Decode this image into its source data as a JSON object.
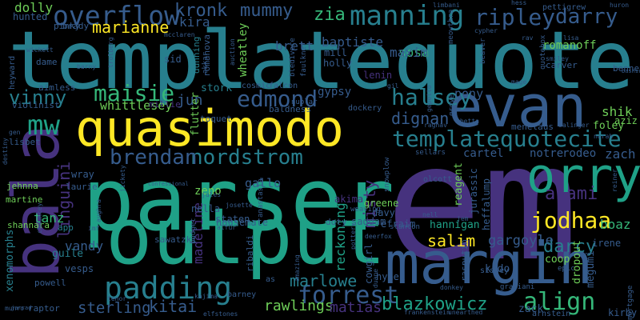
{
  "background": "#000000",
  "palette": {
    "p": "#3b0f70",
    "i": "#46327e",
    "b": "#365c8d",
    "t": "#277f8e",
    "c": "#1fa187",
    "g": "#35b779",
    "l": "#6ece58",
    "y": "#fde725"
  },
  "words": [
    {
      "text": "templatequote",
      "color": "t"
    },
    {
      "text": "em",
      "color": "i"
    },
    {
      "text": "parser",
      "color": "c"
    },
    {
      "text": "output",
      "color": "c"
    },
    {
      "text": "quasimodo",
      "color": "y"
    },
    {
      "text": "margin",
      "color": "b"
    },
    {
      "text": "evan",
      "color": "b"
    },
    {
      "text": "bala",
      "color": "i"
    },
    {
      "text": "orry",
      "color": "c"
    },
    {
      "text": "manning",
      "color": "t"
    },
    {
      "text": "overflow",
      "color": "b"
    },
    {
      "text": "templatequotecite",
      "color": "t"
    },
    {
      "text": "mw",
      "color": "c"
    },
    {
      "text": "nordstrom",
      "color": "t"
    },
    {
      "text": "padding",
      "color": "t"
    },
    {
      "text": "forrest",
      "color": "b"
    },
    {
      "text": "jodhaa",
      "color": "y"
    },
    {
      "text": "blazkowicz",
      "color": "c"
    },
    {
      "text": "align",
      "color": "g"
    },
    {
      "text": "edmond",
      "color": "b"
    },
    {
      "text": "halsey",
      "color": "t"
    },
    {
      "text": "ripley",
      "color": "b"
    },
    {
      "text": "darry",
      "color": "b"
    },
    {
      "text": "brendan",
      "color": "b"
    },
    {
      "text": "maisie",
      "color": "g"
    },
    {
      "text": "vinny",
      "color": "t"
    },
    {
      "text": "asami",
      "color": "i"
    },
    {
      "text": "darcy",
      "color": "t"
    },
    {
      "text": "kronk",
      "color": "b"
    },
    {
      "text": "mummy",
      "color": "b"
    },
    {
      "text": "zia",
      "color": "g"
    },
    {
      "text": "marianne",
      "color": "y"
    },
    {
      "text": "misty",
      "color": "i"
    },
    {
      "text": "dignan",
      "color": "b"
    },
    {
      "text": "marlowe",
      "color": "t"
    },
    {
      "text": "rawlings",
      "color": "l"
    },
    {
      "text": "matias",
      "color": "i"
    },
    {
      "text": "kitai",
      "color": "b"
    },
    {
      "text": "sterling",
      "color": "b"
    },
    {
      "text": "salim",
      "color": "y"
    },
    {
      "text": "gargoyle",
      "color": "b"
    },
    {
      "text": "linguini",
      "color": "i"
    },
    {
      "text": "reckoning",
      "color": "c"
    },
    {
      "text": "madeline",
      "color": "i"
    },
    {
      "text": "hannigan",
      "color": "c"
    },
    {
      "text": "jun",
      "color": "b"
    },
    {
      "text": "tanz",
      "color": "g"
    },
    {
      "text": "vandy",
      "color": "b"
    },
    {
      "text": "shik",
      "color": "l"
    },
    {
      "text": "zach",
      "color": "b"
    },
    {
      "text": "sosa",
      "color": "g"
    },
    {
      "text": "maxim",
      "color": "b"
    },
    {
      "text": "brett",
      "color": "b"
    },
    {
      "text": "baptiste",
      "color": "b"
    },
    {
      "text": "kira",
      "color": "b"
    },
    {
      "text": "romanoff",
      "color": "l"
    },
    {
      "text": "boaz",
      "color": "g"
    },
    {
      "text": "gallo",
      "color": "b"
    },
    {
      "text": "gypsy",
      "color": "b"
    },
    {
      "text": "pony",
      "color": "b"
    },
    {
      "text": "cartel",
      "color": "b"
    },
    {
      "text": "rodeo",
      "color": "b"
    },
    {
      "text": "notre",
      "color": "b"
    },
    {
      "text": "irene",
      "color": "b"
    },
    {
      "text": "dolly",
      "color": "l"
    },
    {
      "text": "hunted",
      "color": "b"
    },
    {
      "text": "pinky",
      "color": "b"
    },
    {
      "text": "wheatley",
      "color": "l"
    },
    {
      "text": "whittlesey",
      "color": "l"
    },
    {
      "text": "millie",
      "color": "i"
    },
    {
      "text": "sid",
      "color": "b"
    },
    {
      "text": "lenin",
      "color": "i"
    },
    {
      "text": "holly",
      "color": "b"
    },
    {
      "text": "mill",
      "color": "b"
    },
    {
      "text": "dunning",
      "color": "t"
    },
    {
      "text": "romanova",
      "color": "b"
    },
    {
      "text": "stork",
      "color": "t"
    },
    {
      "text": "zeno",
      "color": "l"
    },
    {
      "text": "nella",
      "color": "b"
    },
    {
      "text": "staten",
      "color": "b"
    },
    {
      "text": "housemate",
      "color": "b"
    },
    {
      "text": "saddam",
      "color": "b"
    },
    {
      "text": "doty",
      "color": "b"
    },
    {
      "text": "greene",
      "color": "l"
    },
    {
      "text": "davy",
      "color": "b"
    },
    {
      "text": "efraim",
      "color": "b"
    },
    {
      "text": "akima",
      "color": "i"
    },
    {
      "text": "reagent",
      "color": "l"
    },
    {
      "text": "jurassic",
      "color": "b"
    },
    {
      "text": "heffalump",
      "color": "b"
    },
    {
      "text": "coop",
      "color": "l"
    },
    {
      "text": "kido",
      "color": "b"
    },
    {
      "text": "dropout",
      "color": "l"
    },
    {
      "text": "megumi",
      "color": "b"
    },
    {
      "text": "hynek",
      "color": "b"
    },
    {
      "text": "cowgirl",
      "color": "b"
    },
    {
      "text": "zack",
      "color": "b"
    },
    {
      "text": "arnstein",
      "color": "b"
    },
    {
      "text": "kirby",
      "color": "b"
    },
    {
      "text": "menelaus",
      "color": "b"
    },
    {
      "text": "foley",
      "color": "l"
    },
    {
      "text": "aziz",
      "color": "l"
    },
    {
      "text": "bennet",
      "color": "b"
    },
    {
      "text": "pettigrew",
      "color": "b"
    },
    {
      "text": "brady",
      "color": "b"
    },
    {
      "text": "dame",
      "color": "b"
    },
    {
      "text": "aimless",
      "color": "b"
    },
    {
      "text": "violinist",
      "color": "b"
    },
    {
      "text": "lisbet",
      "color": "b"
    },
    {
      "text": "wray",
      "color": "b"
    },
    {
      "text": "laurie",
      "color": "b"
    },
    {
      "text": "jehnna",
      "color": "l"
    },
    {
      "text": "martine",
      "color": "l"
    },
    {
      "text": "shannara",
      "color": "l"
    },
    {
      "text": "xenomorphs",
      "color": "t"
    },
    {
      "text": "guile",
      "color": "t"
    },
    {
      "text": "vesps",
      "color": "b"
    },
    {
      "text": "powell",
      "color": "b"
    },
    {
      "text": "raptor",
      "color": "b"
    },
    {
      "text": "app",
      "color": "t"
    },
    {
      "text": "heyward",
      "color": "b"
    },
    {
      "text": "falcon",
      "color": "b"
    },
    {
      "text": "cosmic",
      "color": "b"
    },
    {
      "text": "nublar",
      "color": "b"
    },
    {
      "text": "baldness",
      "color": "b"
    },
    {
      "text": "dockery",
      "color": "b"
    },
    {
      "text": "toquet",
      "color": "b"
    },
    {
      "text": "flutter",
      "color": "l"
    },
    {
      "text": "olcott",
      "color": "b"
    },
    {
      "text": "weaving",
      "color": "b"
    },
    {
      "text": "snowplow",
      "color": "b"
    },
    {
      "text": "stanton",
      "color": "b"
    },
    {
      "text": "rasputin",
      "color": "b"
    },
    {
      "text": "sissey",
      "color": "b"
    },
    {
      "text": "graziani",
      "color": "b"
    },
    {
      "text": "epic",
      "color": "b"
    },
    {
      "text": "barney",
      "color": "b"
    },
    {
      "text": "ribaldi",
      "color": "b"
    },
    {
      "text": "as",
      "color": "b"
    },
    {
      "text": "kajima",
      "color": "b"
    },
    {
      "text": "tenor",
      "color": "b"
    },
    {
      "text": "munro",
      "color": "b"
    },
    {
      "text": "elfstones",
      "color": "b"
    },
    {
      "text": "frankenstein",
      "color": "b"
    },
    {
      "text": "unearthed",
      "color": "b"
    },
    {
      "text": "donkey",
      "color": "b"
    },
    {
      "text": "duane",
      "color": "b"
    },
    {
      "text": "amazing",
      "color": "b"
    },
    {
      "text": "pottery",
      "color": "b"
    },
    {
      "text": "budget",
      "color": "b"
    },
    {
      "text": "anastasia",
      "color": "b"
    },
    {
      "text": "alfur",
      "color": "b"
    },
    {
      "text": "aughra",
      "color": "b"
    },
    {
      "text": "sawatzki",
      "color": "b"
    },
    {
      "text": "mortgage",
      "color": "b"
    },
    {
      "text": "sellars",
      "color": "b"
    },
    {
      "text": "raghav",
      "color": "b"
    },
    {
      "text": "salinger",
      "color": "b"
    },
    {
      "text": "mage",
      "color": "b"
    },
    {
      "text": "smiley",
      "color": "b"
    },
    {
      "text": "quotebox",
      "color": "b"
    },
    {
      "text": "carver",
      "color": "b"
    },
    {
      "text": "beaver",
      "color": "b"
    },
    {
      "text": "huron",
      "color": "b"
    },
    {
      "text": "hess",
      "color": "b"
    },
    {
      "text": "meowthra",
      "color": "b"
    },
    {
      "text": "cypher",
      "color": "b"
    },
    {
      "text": "wickett",
      "color": "b"
    },
    {
      "text": "barny",
      "color": "b"
    },
    {
      "text": "trolberg",
      "color": "b"
    },
    {
      "text": "bledivere",
      "color": "b"
    },
    {
      "text": "faulkner",
      "color": "b"
    },
    {
      "text": "auction",
      "color": "b"
    },
    {
      "text": "mcclaren",
      "color": "b"
    },
    {
      "text": "gepetto",
      "color": "b"
    },
    {
      "text": "grove",
      "color": "b"
    },
    {
      "text": "obetta",
      "color": "b"
    },
    {
      "text": "jules",
      "color": "b"
    },
    {
      "text": "confessional",
      "color": "b"
    },
    {
      "text": "jarrad",
      "color": "b"
    },
    {
      "text": "chauncey",
      "color": "b"
    },
    {
      "text": "imf",
      "color": "b"
    },
    {
      "text": "gen",
      "color": "b"
    },
    {
      "text": "destiny",
      "color": "b"
    },
    {
      "text": "jickety",
      "color": "b"
    },
    {
      "text": "josette",
      "color": "b"
    },
    {
      "text": "limbani",
      "color": "b"
    },
    {
      "text": "bashir",
      "color": "b"
    },
    {
      "text": "norah",
      "color": "b"
    },
    {
      "text": "reiner",
      "color": "b"
    },
    {
      "text": "nell",
      "color": "b"
    },
    {
      "text": "jem",
      "color": "b"
    },
    {
      "text": "deerfox",
      "color": "b"
    },
    {
      "text": "rav",
      "color": "b"
    },
    {
      "text": "lisa",
      "color": "b"
    },
    {
      "text": "gil",
      "color": "b"
    },
    {
      "text": "akkar",
      "color": "b"
    }
  ]
}
